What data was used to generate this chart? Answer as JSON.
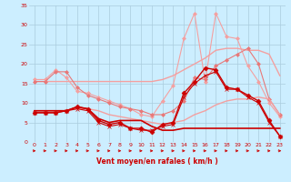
{
  "x": [
    0,
    1,
    2,
    3,
    4,
    5,
    6,
    7,
    8,
    9,
    10,
    11,
    12,
    13,
    14,
    15,
    16,
    17,
    18,
    19,
    20,
    21,
    22,
    23
  ],
  "series": [
    {
      "values": [
        15.5,
        15.5,
        15.5,
        15.5,
        15.5,
        15.5,
        15.5,
        15.5,
        15.5,
        15.5,
        15.5,
        15.5,
        16.0,
        17.0,
        18.5,
        20.0,
        21.5,
        23.5,
        24.0,
        24.0,
        23.5,
        23.5,
        22.5,
        17.0
      ],
      "color": "#f4a0a0",
      "marker": null,
      "lw": 1.0
    },
    {
      "values": [
        16.0,
        16.0,
        18.5,
        16.5,
        13.0,
        12.5,
        11.5,
        10.5,
        9.5,
        8.5,
        7.0,
        6.5,
        10.5,
        14.5,
        26.5,
        33.0,
        15.5,
        33.0,
        27.0,
        26.5,
        19.5,
        15.5,
        10.0,
        6.5
      ],
      "color": "#f4a0a0",
      "marker": "D",
      "lw": 0.8,
      "ms": 2
    },
    {
      "values": [
        15.5,
        15.5,
        18.0,
        18.0,
        14.0,
        12.0,
        11.0,
        10.0,
        9.0,
        8.5,
        8.0,
        7.0,
        7.0,
        8.0,
        10.5,
        16.5,
        16.0,
        19.5,
        21.0,
        22.5,
        24.0,
        20.0,
        11.0,
        7.0
      ],
      "color": "#e87878",
      "marker": "D",
      "lw": 0.8,
      "ms": 2
    },
    {
      "values": [
        8.0,
        8.0,
        8.0,
        8.0,
        8.5,
        8.5,
        8.0,
        7.0,
        6.5,
        6.0,
        5.5,
        5.0,
        4.5,
        5.0,
        5.5,
        7.0,
        8.0,
        9.5,
        10.5,
        11.0,
        11.0,
        11.5,
        11.0,
        7.0
      ],
      "color": "#f4a0a0",
      "marker": null,
      "lw": 1.0
    },
    {
      "values": [
        8.0,
        8.0,
        8.0,
        8.0,
        9.0,
        8.5,
        6.0,
        5.0,
        5.5,
        5.5,
        5.5,
        4.0,
        3.0,
        3.0,
        3.5,
        3.5,
        3.5,
        3.5,
        3.5,
        3.5,
        3.5,
        3.5,
        3.5,
        3.5
      ],
      "color": "#cc0000",
      "marker": null,
      "lw": 1.2
    },
    {
      "values": [
        7.5,
        7.5,
        7.5,
        8.0,
        9.0,
        8.5,
        5.5,
        4.5,
        5.0,
        3.5,
        3.5,
        2.5,
        4.5,
        5.0,
        12.5,
        15.5,
        19.0,
        18.5,
        14.0,
        13.5,
        12.0,
        10.5,
        5.5,
        1.5
      ],
      "color": "#cc0000",
      "marker": "D",
      "lw": 1.0,
      "ms": 2.5
    },
    {
      "values": [
        7.5,
        7.5,
        7.5,
        8.0,
        8.5,
        8.0,
        5.0,
        4.0,
        4.5,
        3.5,
        3.0,
        3.0,
        4.0,
        4.5,
        11.5,
        15.0,
        17.0,
        18.0,
        13.5,
        13.5,
        11.5,
        10.0,
        5.0,
        1.5
      ],
      "color": "#cc0000",
      "marker": "x",
      "lw": 0.8,
      "ms": 2.5
    }
  ],
  "x_label": "Vent moyen/en rafales ( km/h )",
  "ylim": [
    0,
    35
  ],
  "xlim": [
    -0.5,
    23.5
  ],
  "yticks": [
    0,
    5,
    10,
    15,
    20,
    25,
    30,
    35
  ],
  "xticks": [
    0,
    1,
    2,
    3,
    4,
    5,
    6,
    7,
    8,
    9,
    10,
    11,
    12,
    13,
    14,
    15,
    16,
    17,
    18,
    19,
    20,
    21,
    22,
    23
  ],
  "bg_color": "#cceeff",
  "grid_color": "#aaccdd",
  "tick_color": "#cc0000",
  "label_color": "#cc0000",
  "arrow_color": "#cc0000"
}
